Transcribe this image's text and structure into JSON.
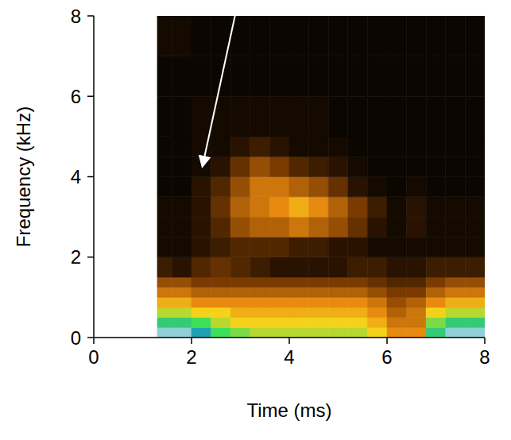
{
  "chart_data": {
    "type": "heatmap",
    "xlabel": "Time (ms)",
    "ylabel": "Frequency (kHz)",
    "xlim": [
      0,
      8
    ],
    "ylim": [
      0,
      8
    ],
    "xticks": [
      0,
      2,
      4,
      6,
      8
    ],
    "yticks": [
      0,
      2,
      4,
      6,
      8
    ],
    "grid": false,
    "x_edges": [
      1.3,
      1.6,
      2.0,
      2.4,
      2.8,
      3.2,
      3.6,
      4.0,
      4.4,
      4.8,
      5.2,
      5.6,
      6.0,
      6.4,
      6.8,
      7.2,
      7.6,
      8.0
    ],
    "y_edges": [
      0,
      0.25,
      0.5,
      0.75,
      1.0,
      1.25,
      1.5,
      2.0,
      2.5,
      3.0,
      3.5,
      4.0,
      4.5,
      5.0,
      6.0,
      7.0,
      8.0
    ],
    "zlim": [
      0,
      10
    ],
    "cells": [
      [
        9.5,
        9.5,
        9,
        7.5,
        7,
        6.5,
        6.5,
        6.5,
        6.5,
        6.5,
        6.5,
        6,
        5,
        5,
        8,
        9.5,
        9.5
      ],
      [
        8,
        8,
        7.5,
        6.5,
        6,
        6,
        6,
        6,
        6,
        6,
        6,
        5.5,
        4.5,
        4.5,
        7,
        8,
        8
      ],
      [
        6.5,
        6.5,
        6,
        6,
        5.5,
        5.5,
        5.5,
        5.5,
        5.5,
        5.5,
        5.5,
        5,
        4,
        4.5,
        6,
        6.5,
        6.5
      ],
      [
        5.5,
        5.5,
        5,
        5,
        5,
        5,
        5,
        5,
        5,
        5,
        5,
        4.5,
        3.5,
        4,
        5,
        5.5,
        5.5
      ],
      [
        4.5,
        4.5,
        4,
        4,
        4,
        4,
        4,
        4,
        4,
        4,
        4,
        3.5,
        3,
        3,
        4,
        4.5,
        4.5
      ],
      [
        3.5,
        3.5,
        3,
        3,
        3,
        3,
        3,
        3,
        3,
        3,
        3,
        2.5,
        2,
        2,
        3,
        3.5,
        3.5
      ],
      [
        1.5,
        1,
        2,
        2.5,
        2,
        1.5,
        1,
        1,
        1,
        1,
        1.5,
        1.5,
        1,
        1,
        1.5,
        1.5,
        1.5
      ],
      [
        0.5,
        0.5,
        1,
        1.5,
        2,
        2,
        2,
        1.5,
        1.5,
        1,
        1,
        0.5,
        0.5,
        0.5,
        0.5,
        0.5,
        0.5
      ],
      [
        0.5,
        0.5,
        1,
        2,
        3.5,
        4,
        4,
        4.5,
        4,
        3.5,
        2.5,
        1,
        0.5,
        1,
        0.5,
        0.5,
        0.5
      ],
      [
        0.5,
        0.5,
        1,
        2.5,
        4,
        4.5,
        5,
        5.5,
        5,
        4,
        3,
        1.5,
        0.5,
        1,
        0.5,
        0.5,
        0.5
      ],
      [
        0.3,
        0.3,
        1,
        2,
        3.5,
        4.5,
        4.5,
        4,
        3.5,
        2.5,
        1,
        0.5,
        0.3,
        0.5,
        0.3,
        0.3,
        0.3
      ],
      [
        0.3,
        0.3,
        0.5,
        1,
        2.5,
        3.5,
        3,
        2,
        1.5,
        1,
        0.5,
        0.3,
        0.3,
        0.3,
        0.3,
        0.3,
        0.3
      ],
      [
        0.3,
        0.3,
        0.5,
        0.5,
        1,
        1.5,
        1,
        0.5,
        0.5,
        0.5,
        0.3,
        0.3,
        0.3,
        0.3,
        0.3,
        0.3,
        0.3
      ],
      [
        0.3,
        0.3,
        0.5,
        0.5,
        0.5,
        0.5,
        0.5,
        0.5,
        0.5,
        0.3,
        0.3,
        0.3,
        0.3,
        0.3,
        0.3,
        0.3,
        0.3
      ],
      [
        0.3,
        0.3,
        0.3,
        0.3,
        0.3,
        0.3,
        0.3,
        0.3,
        0.3,
        0.3,
        0.3,
        0.3,
        0.3,
        0.3,
        0.3,
        0.3,
        0.3
      ],
      [
        0.5,
        0.5,
        0.3,
        0.3,
        0.3,
        0.3,
        0.3,
        0.3,
        0.3,
        0.3,
        0.3,
        0.3,
        0.3,
        0.3,
        0.3,
        0.3,
        0.3
      ]
    ]
  }
}
